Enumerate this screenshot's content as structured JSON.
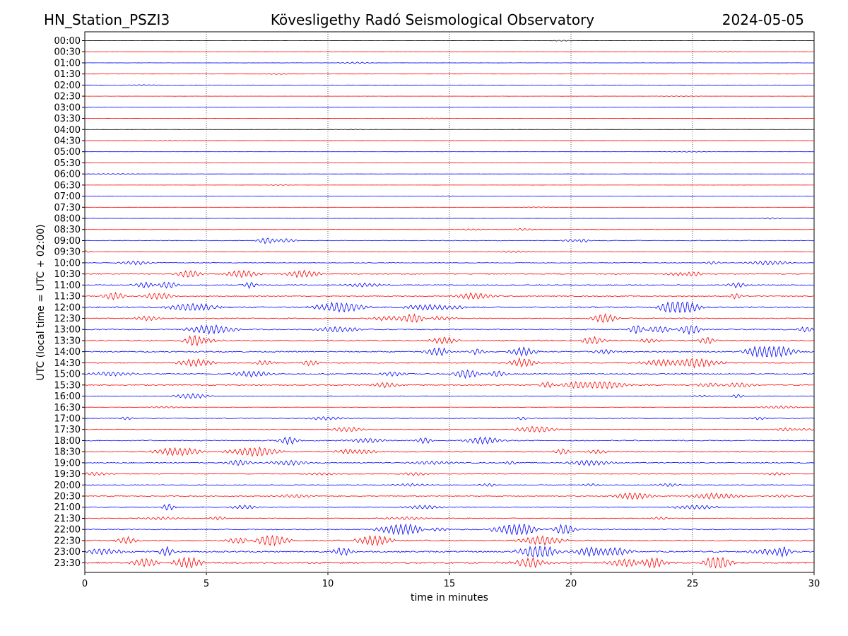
{
  "header": {
    "station": "HN_Station_PSZI3",
    "observatory": "Kövesligethy Radó Seismological Observatory",
    "date": "2024-05-05"
  },
  "chart_data": {
    "type": "line",
    "title": "Kövesligethy Radó Seismological Observatory",
    "xlabel": "time in minutes",
    "ylabel": "UTC (local time = UTC + 02:00)",
    "xlim": [
      0,
      30
    ],
    "x_ticks": [
      "0",
      "5",
      "10",
      "15",
      "20",
      "25",
      "30"
    ],
    "grid_x": true,
    "trace_colors": [
      "#0000ff",
      "#ff0000"
    ],
    "quiet_color": "#000000",
    "rows": [
      {
        "label": "00:00",
        "amp": 0.05,
        "color": "#000000"
      },
      {
        "label": "00:30",
        "amp": 0.05,
        "color": "#ff0000"
      },
      {
        "label": "01:00",
        "amp": 0.08,
        "color": "#0000ff"
      },
      {
        "label": "01:30",
        "amp": 0.05,
        "color": "#ff0000"
      },
      {
        "label": "02:00",
        "amp": 0.05,
        "color": "#0000ff"
      },
      {
        "label": "02:30",
        "amp": 0.05,
        "color": "#ff0000"
      },
      {
        "label": "03:00",
        "amp": 0.05,
        "color": "#0000ff"
      },
      {
        "label": "03:30",
        "amp": 0.05,
        "color": "#ff0000"
      },
      {
        "label": "04:00",
        "amp": 0.06,
        "color": "#000000"
      },
      {
        "label": "04:30",
        "amp": 0.05,
        "color": "#ff0000"
      },
      {
        "label": "05:00",
        "amp": 0.05,
        "color": "#0000ff"
      },
      {
        "label": "05:30",
        "amp": 0.05,
        "color": "#ff0000"
      },
      {
        "label": "06:00",
        "amp": 0.05,
        "color": "#0000ff"
      },
      {
        "label": "06:30",
        "amp": 0.05,
        "color": "#ff0000"
      },
      {
        "label": "07:00",
        "amp": 0.05,
        "color": "#0000ff"
      },
      {
        "label": "07:30",
        "amp": 0.05,
        "color": "#ff0000"
      },
      {
        "label": "08:00",
        "amp": 0.08,
        "color": "#0000ff"
      },
      {
        "label": "08:30",
        "amp": 0.12,
        "color": "#ff0000"
      },
      {
        "label": "09:00",
        "amp": 0.25,
        "color": "#0000ff"
      },
      {
        "label": "09:30",
        "amp": 0.12,
        "color": "#ff0000"
      },
      {
        "label": "10:00",
        "amp": 0.22,
        "color": "#0000ff"
      },
      {
        "label": "10:30",
        "amp": 0.35,
        "color": "#ff0000"
      },
      {
        "label": "11:00",
        "amp": 0.35,
        "color": "#0000ff"
      },
      {
        "label": "11:30",
        "amp": 0.3,
        "color": "#ff0000"
      },
      {
        "label": "12:00",
        "amp": 0.5,
        "color": "#0000ff"
      },
      {
        "label": "12:30",
        "amp": 0.35,
        "color": "#ff0000"
      },
      {
        "label": "13:00",
        "amp": 0.4,
        "color": "#0000ff"
      },
      {
        "label": "13:30",
        "amp": 0.45,
        "color": "#ff0000"
      },
      {
        "label": "14:00",
        "amp": 0.45,
        "color": "#0000ff"
      },
      {
        "label": "14:30",
        "amp": 0.45,
        "color": "#ff0000"
      },
      {
        "label": "15:00",
        "amp": 0.35,
        "color": "#0000ff"
      },
      {
        "label": "15:30",
        "amp": 0.4,
        "color": "#ff0000"
      },
      {
        "label": "16:00",
        "amp": 0.2,
        "color": "#0000ff"
      },
      {
        "label": "16:30",
        "amp": 0.12,
        "color": "#ff0000"
      },
      {
        "label": "17:00",
        "amp": 0.25,
        "color": "#0000ff"
      },
      {
        "label": "17:30",
        "amp": 0.25,
        "color": "#ff0000"
      },
      {
        "label": "18:00",
        "amp": 0.35,
        "color": "#0000ff"
      },
      {
        "label": "18:30",
        "amp": 0.4,
        "color": "#ff0000"
      },
      {
        "label": "19:00",
        "amp": 0.35,
        "color": "#0000ff"
      },
      {
        "label": "19:30",
        "amp": 0.25,
        "color": "#ff0000"
      },
      {
        "label": "20:00",
        "amp": 0.25,
        "color": "#0000ff"
      },
      {
        "label": "20:30",
        "amp": 0.3,
        "color": "#ff0000"
      },
      {
        "label": "21:00",
        "amp": 0.3,
        "color": "#0000ff"
      },
      {
        "label": "21:30",
        "amp": 0.3,
        "color": "#ff0000"
      },
      {
        "label": "22:00",
        "amp": 0.4,
        "color": "#0000ff"
      },
      {
        "label": "22:30",
        "amp": 0.45,
        "color": "#ff0000"
      },
      {
        "label": "23:00",
        "amp": 0.55,
        "color": "#0000ff"
      },
      {
        "label": "23:30",
        "amp": 0.6,
        "color": "#ff0000"
      }
    ]
  }
}
